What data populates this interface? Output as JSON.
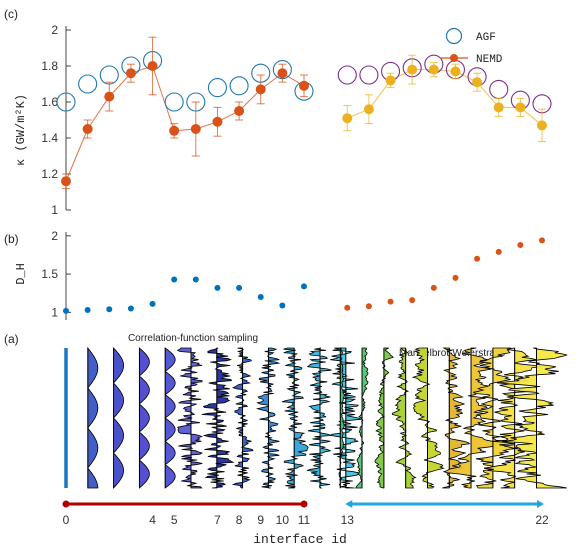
{
  "chart_data": [
    {
      "panel_label": "(c)",
      "type": "scatter",
      "ylabel": "κ (GW/m²K)",
      "ylim": [
        1,
        2
      ],
      "yticks": [
        "1",
        "1.2",
        "1.4",
        "1.6",
        "1.8",
        "2"
      ],
      "legend": {
        "position": "top-right",
        "entries": [
          "AGF",
          "NEMD"
        ]
      },
      "series": [
        {
          "name": "AGF",
          "group": "correlation",
          "color": "#1f77b4",
          "marker": "open-circle",
          "x": [
            0,
            1,
            2,
            3,
            4,
            5,
            6,
            7,
            8,
            9,
            10,
            11
          ],
          "y": [
            1.6,
            1.7,
            1.75,
            1.8,
            1.83,
            1.6,
            1.6,
            1.68,
            1.69,
            1.76,
            1.78,
            1.66
          ]
        },
        {
          "name": "AGF",
          "group": "mandelbrot",
          "color": "#7e2f8e",
          "marker": "open-circle",
          "x": [
            13,
            14,
            15,
            16,
            17,
            18,
            19,
            20,
            21,
            22
          ],
          "y": [
            1.75,
            1.75,
            1.77,
            1.79,
            1.81,
            1.78,
            1.74,
            1.67,
            1.61,
            1.59
          ]
        },
        {
          "name": "NEMD",
          "group": "correlation",
          "color": "#d95319",
          "marker": "filled-circle",
          "x": [
            0,
            1,
            2,
            3,
            4,
            5,
            6,
            7,
            8,
            9,
            10,
            11
          ],
          "y": [
            1.16,
            1.45,
            1.63,
            1.76,
            1.8,
            1.44,
            1.45,
            1.49,
            1.55,
            1.67,
            1.76,
            1.69
          ],
          "err": [
            0.04,
            0.05,
            0.08,
            0.05,
            0.16,
            0.04,
            0.15,
            0.08,
            0.05,
            0.08,
            0.05,
            0.06
          ]
        },
        {
          "name": "NEMD",
          "group": "mandelbrot",
          "color": "#edb120",
          "marker": "filled-circle",
          "x": [
            13,
            14,
            15,
            16,
            17,
            18,
            19,
            20,
            21,
            22
          ],
          "y": [
            1.51,
            1.56,
            1.72,
            1.78,
            1.78,
            1.77,
            1.71,
            1.57,
            1.57,
            1.47
          ],
          "err": [
            0.07,
            0.08,
            0.04,
            0.08,
            0.04,
            0.04,
            0.05,
            0.05,
            0.05,
            0.09
          ]
        }
      ]
    },
    {
      "panel_label": "(b)",
      "type": "scatter",
      "ylabel": "D_H",
      "ylim": [
        0.9,
        2.05
      ],
      "yticks": [
        "1",
        "1.5",
        "2"
      ],
      "series": [
        {
          "group": "correlation",
          "color": "#0072bd",
          "x": [
            0,
            1,
            2,
            3,
            4,
            5,
            6,
            7,
            8,
            9,
            10,
            11
          ],
          "y": [
            1.02,
            1.03,
            1.04,
            1.05,
            1.11,
            1.43,
            1.43,
            1.32,
            1.32,
            1.2,
            1.09,
            1.34
          ]
        },
        {
          "group": "mandelbrot",
          "color": "#d95319",
          "x": [
            13,
            14,
            15,
            16,
            17,
            18,
            19,
            20,
            21,
            22
          ],
          "y": [
            1.06,
            1.08,
            1.14,
            1.16,
            1.32,
            1.45,
            1.7,
            1.79,
            1.88,
            1.94
          ]
        }
      ]
    }
  ],
  "panel_a": {
    "label": "(a)",
    "left_title": "Correlation-function sampling",
    "right_title": "Mandelbrot-Weierstrass",
    "profile_fills": [
      "#3a55c4",
      "#4049c8",
      "#4a46cc",
      "#4b4fd0",
      "#5a5ad6",
      "#1f2c9a",
      "#2a5fcf",
      "#2d86d6",
      "#2fa3d9",
      "#33b5de",
      "#3fc4e3",
      "#3fd0e0",
      "#3dbf8a",
      "#4fc86a",
      "#7cc940",
      "#a4d02c",
      "#c4d42a",
      "#e2b42a",
      "#ecc22e",
      "#f0d434",
      "#f3e03c",
      "#f5e842"
    ]
  },
  "x_axis": {
    "label": "interface id",
    "ticks": [
      "0",
      "4",
      "5",
      "7",
      "8",
      "9",
      "10",
      "11",
      "13",
      "22"
    ],
    "left_bar_color": "#b00000",
    "right_bar_color": "#22a7e0"
  }
}
